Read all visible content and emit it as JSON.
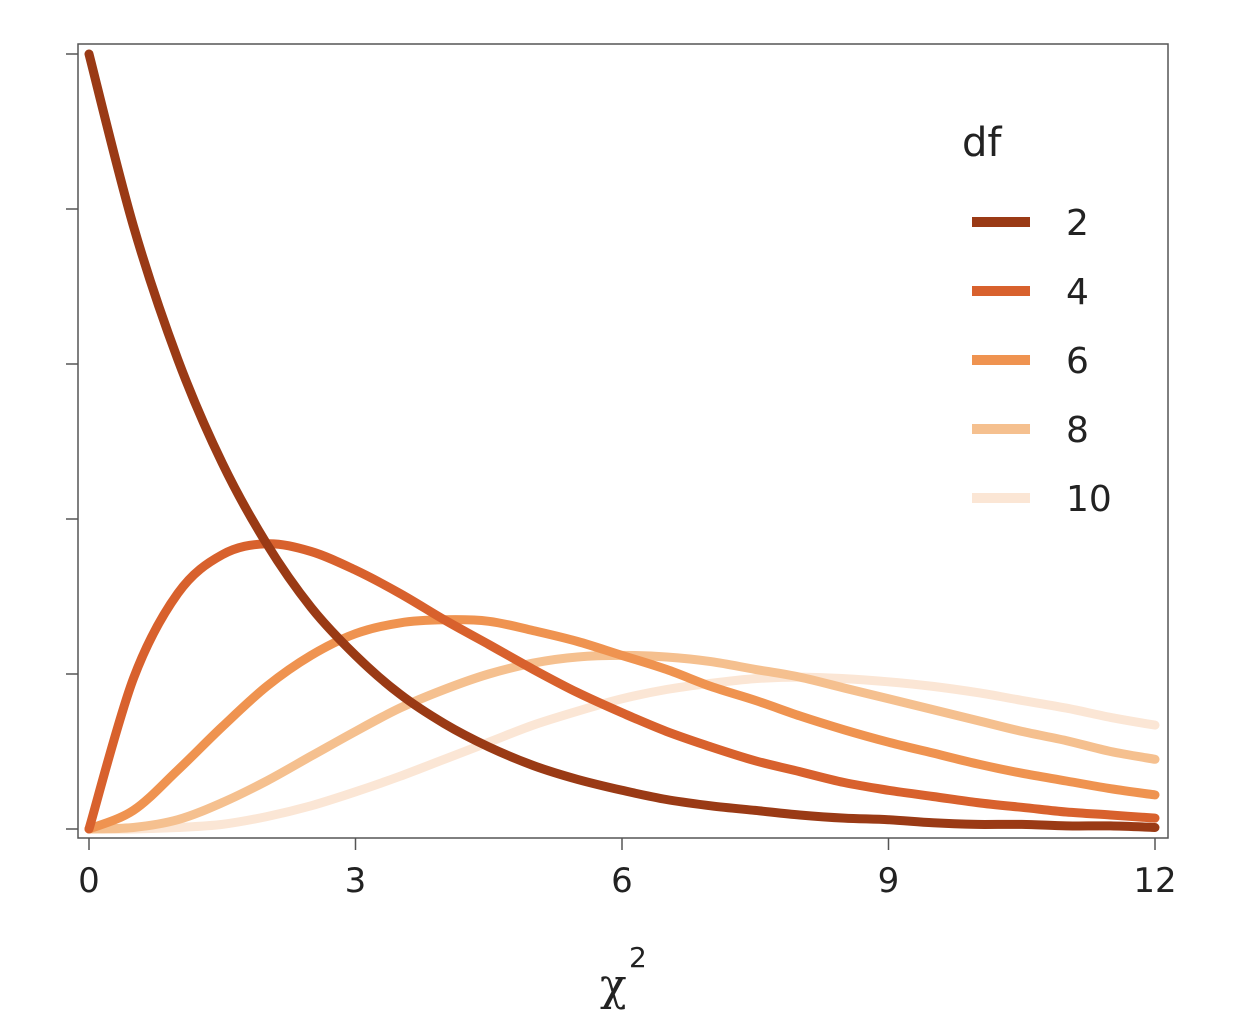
{
  "chart_data": {
    "type": "line",
    "title": "",
    "xlabel": "χ",
    "xlabel_superscript": "2",
    "ylabel": "",
    "xlim": [
      0,
      12
    ],
    "ylim": [
      0,
      0.5
    ],
    "x_ticks": [
      "0",
      "3",
      "6",
      "9",
      "12"
    ],
    "y_ticks_count": 6,
    "y_tick_labels_shown": false,
    "grid": false,
    "legend": {
      "title": "df",
      "placement": "top-right"
    },
    "x": [
      0,
      0.5,
      1,
      1.5,
      2,
      2.5,
      3,
      3.5,
      4,
      4.5,
      5,
      5.5,
      6,
      6.5,
      7,
      7.5,
      8,
      8.5,
      9,
      9.5,
      10,
      10.5,
      11,
      11.5,
      12
    ],
    "series": [
      {
        "name": "2",
        "color": "#9a3a15",
        "values": [
          0.5,
          0.389,
          0.303,
          0.236,
          0.184,
          0.143,
          0.112,
          0.087,
          0.068,
          0.053,
          0.041,
          0.032,
          0.025,
          0.019,
          0.015,
          0.012,
          0.009,
          0.007,
          0.006,
          0.004,
          0.003,
          0.003,
          0.002,
          0.002,
          0.001
        ]
      },
      {
        "name": "4",
        "color": "#d8612d",
        "values": [
          0.0,
          0.097,
          0.152,
          0.177,
          0.184,
          0.179,
          0.167,
          0.152,
          0.135,
          0.119,
          0.103,
          0.088,
          0.075,
          0.063,
          0.053,
          0.044,
          0.037,
          0.03,
          0.025,
          0.021,
          0.017,
          0.014,
          0.011,
          0.009,
          0.007
        ]
      },
      {
        "name": "6",
        "color": "#ef9350",
        "values": [
          0.0,
          0.012,
          0.038,
          0.066,
          0.092,
          0.112,
          0.126,
          0.133,
          0.135,
          0.134,
          0.128,
          0.121,
          0.112,
          0.103,
          0.092,
          0.083,
          0.073,
          0.064,
          0.056,
          0.049,
          0.042,
          0.036,
          0.031,
          0.026,
          0.022
        ]
      },
      {
        "name": "8",
        "color": "#f5c08f",
        "values": [
          0.0,
          0.001,
          0.006,
          0.017,
          0.031,
          0.047,
          0.063,
          0.078,
          0.09,
          0.1,
          0.107,
          0.111,
          0.112,
          0.111,
          0.108,
          0.103,
          0.098,
          0.091,
          0.084,
          0.077,
          0.07,
          0.063,
          0.057,
          0.05,
          0.045
        ]
      },
      {
        "name": "10",
        "color": "#fbe6d5",
        "values": [
          0.0,
          0.0,
          0.001,
          0.003,
          0.008,
          0.015,
          0.024,
          0.034,
          0.045,
          0.056,
          0.067,
          0.076,
          0.084,
          0.09,
          0.094,
          0.097,
          0.098,
          0.097,
          0.095,
          0.092,
          0.088,
          0.083,
          0.078,
          0.072,
          0.067
        ]
      }
    ]
  }
}
